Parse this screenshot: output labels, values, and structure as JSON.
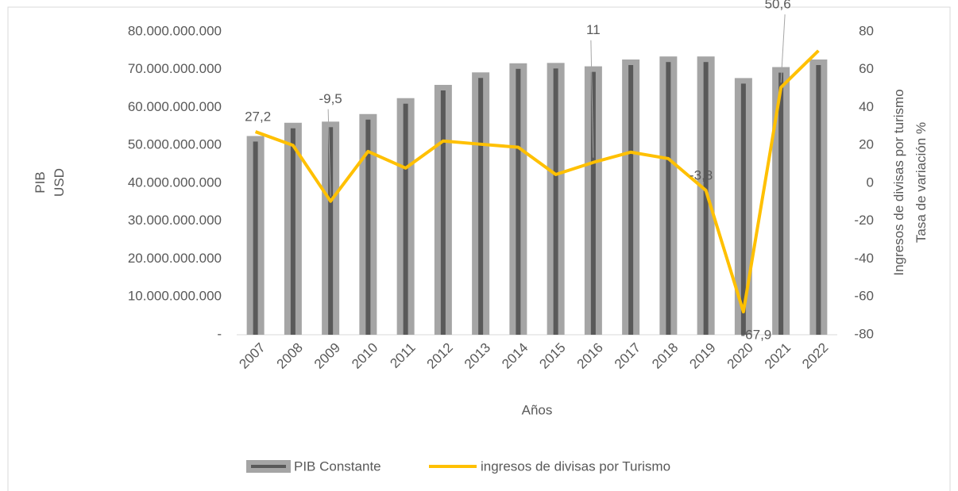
{
  "chart_data": {
    "type": "bar_line",
    "categories": [
      "2007",
      "2008",
      "2009",
      "2010",
      "2011",
      "2012",
      "2013",
      "2014",
      "2015",
      "2016",
      "2017",
      "2018",
      "2019",
      "2020",
      "2021",
      "2022"
    ],
    "series": [
      {
        "name": "PIB Constante",
        "type": "bar",
        "color": "#a5a5a5",
        "core_color": "#595959",
        "values": [
          51000000000,
          54500000000,
          54800000000,
          56800000000,
          61000000000,
          64500000000,
          67800000000,
          70200000000,
          70300000000,
          69400000000,
          71200000000,
          72000000000,
          72000000000,
          66300000000,
          69200000000,
          71200000000
        ]
      },
      {
        "name": "ingresos de divisas por Turismo",
        "type": "line",
        "axis": "y2",
        "color": "#ffc000",
        "values": [
          27.2,
          20,
          -9.5,
          16.8,
          8,
          22.3,
          20.6,
          19,
          4.6,
          11,
          16.4,
          13,
          -3.8,
          -67.9,
          50.6,
          70
        ],
        "value_labels": [
          "27,2",
          null,
          "-9,5",
          null,
          null,
          null,
          null,
          null,
          null,
          "11",
          null,
          null,
          "-3,8",
          "-67,9",
          "50,6",
          null
        ]
      }
    ],
    "xlabel": "Años",
    "ylabel": [
      "PIB",
      "USD"
    ],
    "y2label": [
      "Ingresos de divisas por turismo",
      "Tasa de variación %"
    ],
    "ylim": [
      0,
      80000000000
    ],
    "yticks": [
      {
        "value": 0,
        "label": "-"
      },
      {
        "value": 10000000000,
        "label": "10.000.000.000"
      },
      {
        "value": 20000000000,
        "label": "20.000.000.000"
      },
      {
        "value": 30000000000,
        "label": "30.000.000.000"
      },
      {
        "value": 40000000000,
        "label": "40.000.000.000"
      },
      {
        "value": 50000000000,
        "label": "50.000.000.000"
      },
      {
        "value": 60000000000,
        "label": "60.000.000.000"
      },
      {
        "value": 70000000000,
        "label": "70.000.000.000"
      },
      {
        "value": 80000000000,
        "label": "80.000.000.000"
      }
    ],
    "y2lim": [
      -80,
      80
    ],
    "y2ticks": [
      -80,
      -60,
      -40,
      -20,
      0,
      20,
      40,
      60,
      80
    ],
    "legend": "bottom"
  }
}
